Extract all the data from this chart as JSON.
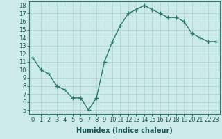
{
  "x": [
    0,
    1,
    2,
    3,
    4,
    5,
    6,
    7,
    8,
    9,
    10,
    11,
    12,
    13,
    14,
    15,
    16,
    17,
    18,
    19,
    20,
    21,
    22,
    23
  ],
  "y": [
    11.5,
    10.0,
    9.5,
    8.0,
    7.5,
    6.5,
    6.5,
    5.0,
    6.5,
    11.0,
    13.5,
    15.5,
    17.0,
    17.5,
    18.0,
    17.5,
    17.0,
    16.5,
    16.5,
    16.0,
    14.5,
    14.0,
    13.5,
    13.5
  ],
  "line_color": "#2a7a6e",
  "marker_color": "#2a7a6e",
  "bg_color": "#cceae8",
  "grid_color": "#aad4d0",
  "xlabel": "Humidex (Indice chaleur)",
  "ylim": [
    4.5,
    18.5
  ],
  "xlim": [
    -0.5,
    23.5
  ],
  "yticks": [
    5,
    6,
    7,
    8,
    9,
    10,
    11,
    12,
    13,
    14,
    15,
    16,
    17,
    18
  ],
  "xticks": [
    0,
    1,
    2,
    3,
    4,
    5,
    6,
    7,
    8,
    9,
    10,
    11,
    12,
    13,
    14,
    15,
    16,
    17,
    18,
    19,
    20,
    21,
    22,
    23
  ],
  "xtick_labels": [
    "0",
    "1",
    "2",
    "3",
    "4",
    "5",
    "6",
    "7",
    "8",
    "9",
    "10",
    "11",
    "12",
    "13",
    "14",
    "15",
    "16",
    "17",
    "18",
    "19",
    "20",
    "21",
    "22",
    "23"
  ],
  "ytick_labels": [
    "5",
    "6",
    "7",
    "8",
    "9",
    "10",
    "11",
    "12",
    "13",
    "14",
    "15",
    "16",
    "17",
    "18"
  ],
  "marker": "+",
  "linewidth": 1.0,
  "markersize": 4,
  "markeredgewidth": 1.0,
  "xlabel_fontsize": 7,
  "tick_fontsize": 6
}
